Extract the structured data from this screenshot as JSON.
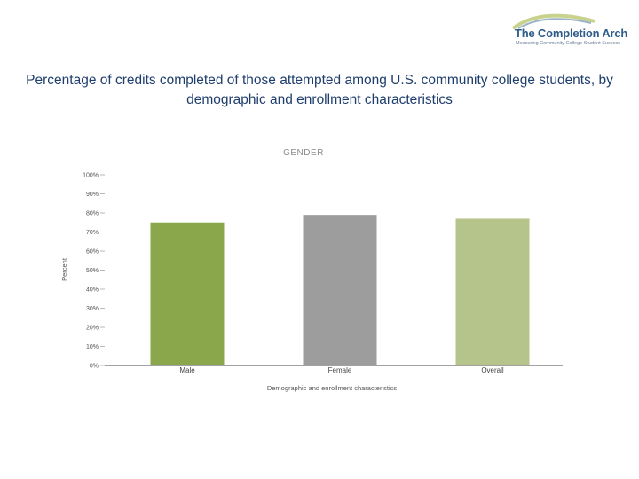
{
  "logo": {
    "name": "The Completion Arch",
    "tagline": "Measuring Community College Student Success"
  },
  "slide_title": "Percentage of credits completed of those attempted among U.S. community college students, by demographic and enrollment characteristics",
  "chart_data": {
    "type": "bar",
    "title": "GENDER",
    "categories": [
      "Male",
      "Female",
      "Overall"
    ],
    "values": [
      75,
      79,
      77
    ],
    "colors": [
      "#8aa84b",
      "#9d9d9d",
      "#b4c48a"
    ],
    "xlabel": "Demographic and enrollment characteristics",
    "ylabel": "Percent",
    "ylim": [
      0,
      100
    ],
    "yticks": [
      "0%",
      "10%",
      "20%",
      "30%",
      "40%",
      "50%",
      "60%",
      "70%",
      "80%",
      "90%",
      "100%"
    ],
    "grid": false
  }
}
